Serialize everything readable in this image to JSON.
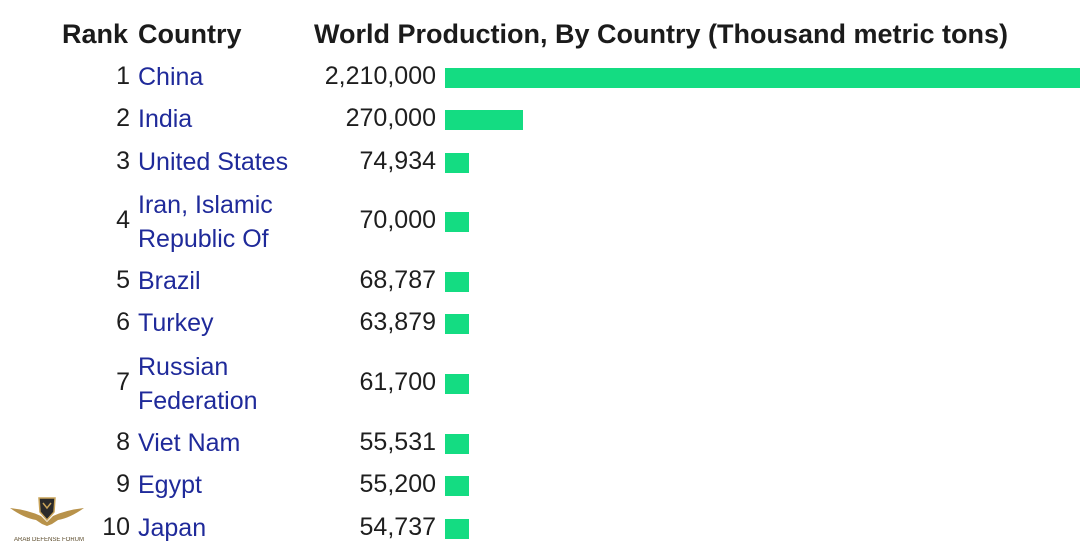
{
  "chart_data": {
    "type": "bar",
    "orientation": "horizontal",
    "headers": {
      "rank": "Rank",
      "country": "Country",
      "value": "World Production, By Country (Thousand metric tons)"
    },
    "rows": [
      {
        "rank": "1",
        "country": "China",
        "value_label": "2,210,000",
        "value": 2210000
      },
      {
        "rank": "2",
        "country": "India",
        "value_label": "270,000",
        "value": 270000
      },
      {
        "rank": "3",
        "country": "United States",
        "value_label": "74,934",
        "value": 74934
      },
      {
        "rank": "4",
        "country": "Iran, Islamic Republic Of",
        "value_label": "70,000",
        "value": 70000
      },
      {
        "rank": "5",
        "country": "Brazil",
        "value_label": "68,787",
        "value": 68787
      },
      {
        "rank": "6",
        "country": "Turkey",
        "value_label": "63,879",
        "value": 63879
      },
      {
        "rank": "7",
        "country": "Russian Federation",
        "value_label": "61,700",
        "value": 61700
      },
      {
        "rank": "8",
        "country": "Viet Nam",
        "value_label": "55,531",
        "value": 55531
      },
      {
        "rank": "9",
        "country": "Egypt",
        "value_label": "55,200",
        "value": 55200
      },
      {
        "rank": "10",
        "country": "Japan",
        "value_label": "54,737",
        "value": 54737
      }
    ],
    "bar_color": "#14dc82",
    "country_color": "#1f2a9a"
  },
  "watermark": {
    "text": "ARAB DEFENSE FORUM",
    "icon": "eagle-logo-icon"
  }
}
